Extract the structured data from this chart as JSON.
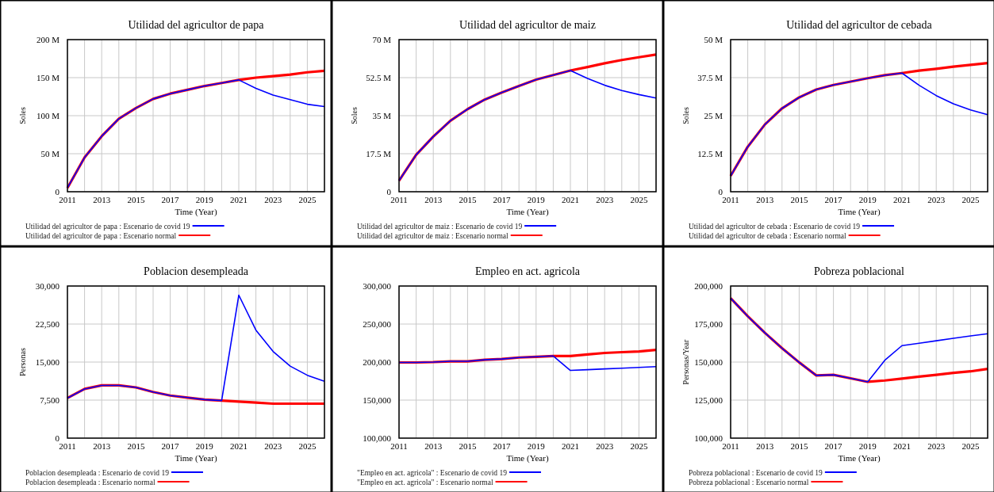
{
  "chart_data": [
    {
      "type": "line",
      "title": "Utilidad del agricultor de papa",
      "xlabel": "Time (Year)",
      "ylabel": "Soles",
      "x": [
        2011,
        2012,
        2013,
        2014,
        2015,
        2016,
        2017,
        2018,
        2019,
        2020,
        2021,
        2022,
        2023,
        2024,
        2025,
        2026
      ],
      "xlim": [
        2011,
        2026
      ],
      "xticks": [
        2011,
        {
          "value": 2012,
          "label": null
        },
        2013,
        {
          "value": 2014,
          "label": null
        },
        2015,
        {
          "value": 2016,
          "label": null
        },
        2017,
        {
          "value": 2018,
          "label": null
        },
        2019,
        {
          "value": 2020,
          "label": null
        },
        2021,
        {
          "value": 2022,
          "label": null
        },
        2023,
        {
          "value": 2024,
          "label": null
        },
        2025,
        {
          "value": 2026,
          "label": null
        }
      ],
      "ylim": [
        0,
        200000000
      ],
      "yticks": [
        {
          "value": 0,
          "label": "0"
        },
        {
          "value": 50000000,
          "label": "50 M"
        },
        {
          "value": 100000000,
          "label": "100 M"
        },
        {
          "value": 150000000,
          "label": "150 M"
        },
        {
          "value": 200000000,
          "label": "200 M"
        }
      ],
      "grid": true,
      "legend": "bottom",
      "series": [
        {
          "name": "Utilidad del agricultor de papa : Escenario de covid 19",
          "color": "#0000ff",
          "values": [
            5000000,
            45000000,
            73000000,
            96000000,
            110000000,
            122000000,
            129000000,
            134000000,
            139000000,
            143000000,
            147000000,
            136000000,
            127000000,
            121000000,
            115000000,
            112000000
          ]
        },
        {
          "name": "Utilidad del agricultor de papa : Escenario normal",
          "color": "#ff0000",
          "values": [
            5000000,
            45000000,
            73000000,
            96000000,
            110000000,
            122000000,
            129000000,
            134000000,
            139000000,
            143000000,
            147000000,
            150000000,
            152000000,
            154000000,
            157000000,
            159000000
          ]
        }
      ]
    },
    {
      "type": "line",
      "title": "Utilidad del agricultor de maiz",
      "xlabel": "Time (Year)",
      "ylabel": "Soles",
      "x": [
        2011,
        2012,
        2013,
        2014,
        2015,
        2016,
        2017,
        2018,
        2019,
        2020,
        2021,
        2022,
        2023,
        2024,
        2025,
        2026
      ],
      "xlim": [
        2011,
        2026
      ],
      "xticks": [
        2011,
        {
          "value": 2012,
          "label": null
        },
        2013,
        {
          "value": 2014,
          "label": null
        },
        2015,
        {
          "value": 2016,
          "label": null
        },
        2017,
        {
          "value": 2018,
          "label": null
        },
        2019,
        {
          "value": 2020,
          "label": null
        },
        2021,
        {
          "value": 2022,
          "label": null
        },
        2023,
        {
          "value": 2024,
          "label": null
        },
        2025,
        {
          "value": 2026,
          "label": null
        }
      ],
      "ylim": [
        0,
        70000000
      ],
      "yticks": [
        {
          "value": 0,
          "label": "0"
        },
        {
          "value": 17500000,
          "label": "17.5 M"
        },
        {
          "value": 35000000,
          "label": "35 M"
        },
        {
          "value": 52500000,
          "label": "52.5 M"
        },
        {
          "value": 70000000,
          "label": "70 M"
        }
      ],
      "grid": true,
      "legend": "bottom",
      "series": [
        {
          "name": "Utilidad del agricultor de maiz : Escenario de covid 19",
          "color": "#0000ff",
          "values": [
            5100000,
            17000000,
            25400000,
            32700000,
            38000000,
            42400000,
            45700000,
            48700000,
            51600000,
            53700000,
            55800000,
            52100000,
            49000000,
            46600000,
            44700000,
            43100000
          ]
        },
        {
          "name": "Utilidad del agricultor de maiz : Escenario normal",
          "color": "#ff0000",
          "values": [
            5100000,
            17000000,
            25400000,
            32700000,
            38000000,
            42400000,
            45700000,
            48700000,
            51600000,
            53700000,
            55800000,
            57400000,
            59100000,
            60600000,
            61900000,
            63100000
          ]
        }
      ]
    },
    {
      "type": "line",
      "title": "Utilidad del agricultor de cebada",
      "xlabel": "Time (Year)",
      "ylabel": "Soles",
      "x": [
        2011,
        2012,
        2013,
        2014,
        2015,
        2016,
        2017,
        2018,
        2019,
        2020,
        2021,
        2022,
        2023,
        2024,
        2025,
        2026
      ],
      "xlim": [
        2011,
        2026
      ],
      "xticks": [
        2011,
        {
          "value": 2012,
          "label": null
        },
        2013,
        {
          "value": 2014,
          "label": null
        },
        2015,
        {
          "value": 2016,
          "label": null
        },
        2017,
        {
          "value": 2018,
          "label": null
        },
        2019,
        {
          "value": 2020,
          "label": null
        },
        2021,
        {
          "value": 2022,
          "label": null
        },
        2023,
        {
          "value": 2024,
          "label": null
        },
        2025,
        {
          "value": 2026,
          "label": null
        }
      ],
      "ylim": [
        0,
        50000000
      ],
      "yticks": [
        {
          "value": 0,
          "label": "0"
        },
        {
          "value": 12500000,
          "label": "12.5 M"
        },
        {
          "value": 25000000,
          "label": "25 M"
        },
        {
          "value": 37500000,
          "label": "37.5 M"
        },
        {
          "value": 50000000,
          "label": "50 M"
        }
      ],
      "grid": true,
      "legend": "bottom",
      "series": [
        {
          "name": "Utilidad del agricultor de cebada : Escenario de covid 19",
          "color": "#0000ff",
          "values": [
            5200000,
            14800000,
            22100000,
            27400000,
            31000000,
            33600000,
            35100000,
            36200000,
            37300000,
            38300000,
            39000000,
            35000000,
            31600000,
            28900000,
            26900000,
            25300000
          ]
        },
        {
          "name": "Utilidad del agricultor de cebada : Escenario normal",
          "color": "#ff0000",
          "values": [
            5200000,
            14800000,
            22100000,
            27400000,
            31000000,
            33600000,
            35100000,
            36200000,
            37300000,
            38300000,
            39000000,
            39800000,
            40400000,
            41100000,
            41700000,
            42300000
          ]
        }
      ]
    },
    {
      "type": "line",
      "title": "Poblacion desempleada",
      "xlabel": "Time (Year)",
      "ylabel": "Personas",
      "x": [
        2011,
        2012,
        2013,
        2014,
        2015,
        2016,
        2017,
        2018,
        2019,
        2020,
        2021,
        2022,
        2023,
        2024,
        2025,
        2026
      ],
      "xlim": [
        2011,
        2026
      ],
      "xticks": [
        2011,
        {
          "value": 2012,
          "label": null
        },
        2013,
        {
          "value": 2014,
          "label": null
        },
        2015,
        {
          "value": 2016,
          "label": null
        },
        2017,
        {
          "value": 2018,
          "label": null
        },
        2019,
        {
          "value": 2020,
          "label": null
        },
        2021,
        {
          "value": 2022,
          "label": null
        },
        2023,
        {
          "value": 2024,
          "label": null
        },
        2025,
        {
          "value": 2026,
          "label": null
        }
      ],
      "ylim": [
        0,
        30000
      ],
      "yticks": [
        {
          "value": 0,
          "label": "0"
        },
        {
          "value": 7500,
          "label": "7,500"
        },
        {
          "value": 15000,
          "label": "15,000"
        },
        {
          "value": 22500,
          "label": "22,500"
        },
        {
          "value": 30000,
          "label": "30,000"
        }
      ],
      "grid": true,
      "legend": "bottom",
      "series": [
        {
          "name": "Poblacion desempleada : Escenario de covid 19",
          "color": "#0000ff",
          "values": [
            7900,
            9700,
            10400,
            10400,
            10000,
            9100,
            8400,
            8000,
            7600,
            7400,
            28200,
            21300,
            17100,
            14200,
            12400,
            11200
          ]
        },
        {
          "name": "Poblacion desempleada : Escenario normal",
          "color": "#ff0000",
          "values": [
            7900,
            9700,
            10400,
            10400,
            10000,
            9100,
            8400,
            8000,
            7600,
            7400,
            7200,
            7000,
            6800,
            6800,
            6800,
            6800
          ]
        }
      ]
    },
    {
      "type": "line",
      "title": "Empleo en act. agricola",
      "xlabel": "Time (Year)",
      "x": [
        2011,
        2012,
        2013,
        2014,
        2015,
        2016,
        2017,
        2018,
        2019,
        2020,
        2021,
        2022,
        2023,
        2024,
        2025,
        2026
      ],
      "xlim": [
        2011,
        2026
      ],
      "xticks": [
        2011,
        {
          "value": 2012,
          "label": null
        },
        2013,
        {
          "value": 2014,
          "label": null
        },
        2015,
        {
          "value": 2016,
          "label": null
        },
        2017,
        {
          "value": 2018,
          "label": null
        },
        2019,
        {
          "value": 2020,
          "label": null
        },
        2021,
        {
          "value": 2022,
          "label": null
        },
        2023,
        {
          "value": 2024,
          "label": null
        },
        2025,
        {
          "value": 2026,
          "label": null
        }
      ],
      "ylim": [
        100000,
        300000
      ],
      "yticks": [
        {
          "value": 100000,
          "label": "100,000"
        },
        {
          "value": 150000,
          "label": "150,000"
        },
        {
          "value": 200000,
          "label": "200,000"
        },
        {
          "value": 250000,
          "label": "250,000"
        },
        {
          "value": 300000,
          "label": "300,000"
        }
      ],
      "grid": true,
      "legend": "bottom",
      "series": [
        {
          "name": "\"Empleo en act. agricola\" : Escenario de covid 19",
          "color": "#0000ff",
          "values": [
            199500,
            199500,
            200000,
            201000,
            201000,
            203000,
            204000,
            206000,
            207000,
            208000,
            189000,
            190000,
            191000,
            192000,
            193000,
            194000
          ]
        },
        {
          "name": "\"Empleo en act. agricola\" : Escenario normal",
          "color": "#ff0000",
          "values": [
            199500,
            199500,
            200000,
            201000,
            201000,
            203000,
            204000,
            206000,
            207000,
            208000,
            208000,
            210000,
            212000,
            213000,
            214000,
            216000
          ]
        }
      ]
    },
    {
      "type": "line",
      "title": "Pobreza poblacional",
      "xlabel": "Time (Year)",
      "ylabel": "Personas/Year",
      "x": [
        2011,
        2012,
        2013,
        2014,
        2015,
        2016,
        2017,
        2018,
        2019,
        2020,
        2021,
        2022,
        2023,
        2024,
        2025,
        2026
      ],
      "xlim": [
        2011,
        2026
      ],
      "xticks": [
        2011,
        {
          "value": 2012,
          "label": null
        },
        2013,
        {
          "value": 2014,
          "label": null
        },
        2015,
        {
          "value": 2016,
          "label": null
        },
        2017,
        {
          "value": 2018,
          "label": null
        },
        2019,
        {
          "value": 2020,
          "label": null
        },
        2021,
        {
          "value": 2022,
          "label": null
        },
        2023,
        {
          "value": 2024,
          "label": null
        },
        2025,
        {
          "value": 2026,
          "label": null
        }
      ],
      "ylim": [
        100000,
        200000
      ],
      "yticks": [
        {
          "value": 100000,
          "label": "100,000"
        },
        {
          "value": 125000,
          "label": "125,000"
        },
        {
          "value": 150000,
          "label": "150,000"
        },
        {
          "value": 175000,
          "label": "175,000"
        },
        {
          "value": 200000,
          "label": "200,000"
        }
      ],
      "grid": true,
      "legend": "bottom",
      "series": [
        {
          "name": "Pobreza poblacional : Escenario de covid 19",
          "color": "#0000ff",
          "values": [
            192000,
            180100,
            169200,
            159100,
            149800,
            141200,
            141600,
            139300,
            137000,
            151200,
            160800,
            162400,
            164000,
            165600,
            167200,
            168600
          ]
        },
        {
          "name": "Pobreza poblacional : Escenario normal",
          "color": "#ff0000",
          "values": [
            192000,
            180100,
            169200,
            159100,
            149800,
            141200,
            141600,
            139300,
            137000,
            137900,
            139100,
            140400,
            141600,
            142900,
            143900,
            145500
          ]
        }
      ]
    }
  ]
}
